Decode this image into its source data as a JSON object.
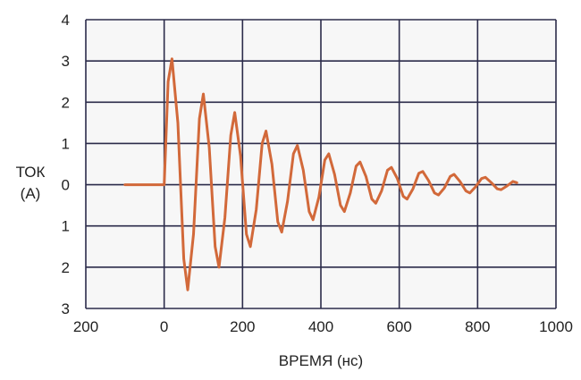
{
  "chart_data": {
    "type": "line",
    "xlabel": "ВРЕМЯ (нс)",
    "ylabel_lines": [
      "ТОК",
      "(А)"
    ],
    "xlim": [
      -200,
      1000
    ],
    "ylim": [
      -3,
      4
    ],
    "x_ticks": [
      -200,
      0,
      200,
      400,
      600,
      800,
      1000
    ],
    "x_tick_labels": [
      "200",
      "0",
      "200",
      "400",
      "600",
      "800",
      "1000"
    ],
    "y_ticks": [
      4,
      3,
      2,
      1,
      0,
      -1,
      -2,
      -3
    ],
    "y_tick_labels": [
      "4",
      "3",
      "2",
      "1",
      "0",
      "1",
      "2",
      "3"
    ],
    "grid": true,
    "colors": {
      "line": "#d2693a",
      "grid": "#2b2b4a",
      "background": "#f7f7f7"
    },
    "series": [
      {
        "x": [
          -100,
          0,
          10,
          20,
          35,
          50,
          60,
          75,
          90,
          100,
          115,
          130,
          140,
          155,
          170,
          180,
          195,
          210,
          220,
          235,
          250,
          260,
          275,
          290,
          300,
          315,
          330,
          340,
          355,
          370,
          380,
          395,
          410,
          420,
          435,
          450,
          460,
          475,
          490,
          500,
          515,
          530,
          540,
          555,
          570,
          580,
          595,
          610,
          620,
          635,
          650,
          660,
          675,
          690,
          700,
          715,
          730,
          740,
          755,
          770,
          780,
          795,
          810,
          820,
          835,
          850,
          860,
          875,
          890,
          900
        ],
        "y": [
          0,
          0,
          2.5,
          3.05,
          1.5,
          -1.8,
          -2.55,
          -1.2,
          1.6,
          2.2,
          0.9,
          -1.5,
          -2.0,
          -0.8,
          1.2,
          1.75,
          0.7,
          -1.2,
          -1.5,
          -0.6,
          1.0,
          1.3,
          0.5,
          -0.9,
          -1.15,
          -0.4,
          0.75,
          0.95,
          0.35,
          -0.65,
          -0.85,
          -0.3,
          0.6,
          0.75,
          0.25,
          -0.5,
          -0.65,
          -0.2,
          0.45,
          0.55,
          0.2,
          -0.35,
          -0.45,
          -0.15,
          0.35,
          0.42,
          0.15,
          -0.28,
          -0.35,
          -0.1,
          0.28,
          0.32,
          0.1,
          -0.2,
          -0.25,
          -0.08,
          0.2,
          0.25,
          0.08,
          -0.15,
          -0.2,
          -0.05,
          0.15,
          0.18,
          0.05,
          -0.1,
          -0.12,
          -0.03,
          0.08,
          0.05
        ]
      }
    ]
  }
}
